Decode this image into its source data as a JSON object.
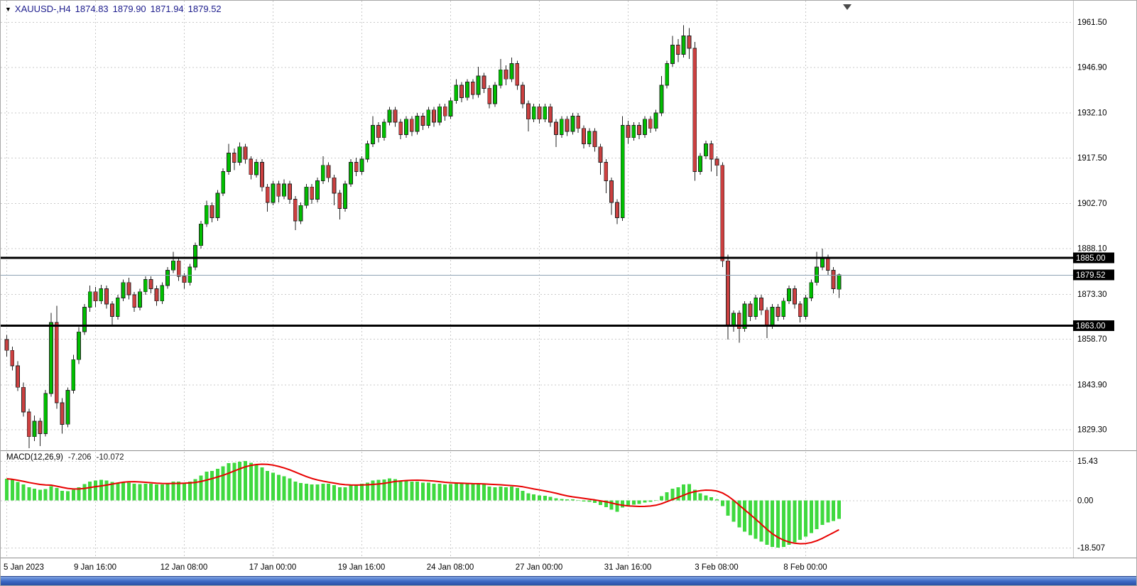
{
  "header": {
    "collapse_icon": "▼",
    "symbol_period": "XAUUSD-,H4",
    "open": "1874.83",
    "high": "1879.90",
    "low": "1871.94",
    "close": "1879.52"
  },
  "macd_label": {
    "title": "MACD(12,26,9)",
    "main_value": "-7.206",
    "signal_value": "-10.072"
  },
  "colors": {
    "background": "#ffffff",
    "grid": "#c9c9c9",
    "up": "#00be00",
    "down": "#cc4040",
    "wick": "#222222",
    "macd_hist": "#3fd93f",
    "macd_signal": "#e80000",
    "hline": "#000000",
    "bid_line": "#8fa3b5",
    "axis_text": "#000000",
    "tag_bg": "#000000",
    "tag_text": "#ffffff",
    "header_text": "#1c1c8c"
  },
  "chart_data": {
    "type": "candlestick",
    "symbol": "XAUUSD-",
    "timeframe": "H4",
    "title": "XAUUSD-,H4",
    "grid": "dashed",
    "bars_per_gridline": 16,
    "ylim": [
      1822.8,
      1968.4
    ],
    "price_axis": [
      {
        "label": "1961.50",
        "value": 1961.5
      },
      {
        "label": "1946.90",
        "value": 1946.9
      },
      {
        "label": "1932.10",
        "value": 1932.1
      },
      {
        "label": "1917.50",
        "value": 1917.5
      },
      {
        "label": "1902.70",
        "value": 1902.7
      },
      {
        "label": "1888.10",
        "value": 1888.1
      },
      {
        "label": "1873.30",
        "value": 1873.3
      },
      {
        "label": "1858.70",
        "value": 1858.7
      },
      {
        "label": "1843.90",
        "value": 1843.9
      },
      {
        "label": "1829.30",
        "value": 1829.3
      }
    ],
    "time_labels": [
      {
        "label": "5 Jan 2023",
        "bar": 0
      },
      {
        "label": "9 Jan 16:00",
        "bar": 16
      },
      {
        "label": "12 Jan 08:00",
        "bar": 32
      },
      {
        "label": "17 Jan 00:00",
        "bar": 48
      },
      {
        "label": "19 Jan 16:00",
        "bar": 64
      },
      {
        "label": "24 Jan 08:00",
        "bar": 80
      },
      {
        "label": "27 Jan 00:00",
        "bar": 96
      },
      {
        "label": "31 Jan 16:00",
        "bar": 112
      },
      {
        "label": "3 Feb 08:00",
        "bar": 128
      },
      {
        "label": "8 Feb 00:00",
        "bar": 144
      }
    ],
    "horizontal_lines": [
      {
        "label": "1885.00",
        "value": 1885.0
      },
      {
        "label": "1863.00",
        "value": 1863.0
      }
    ],
    "current_price": {
      "label": "1879.52",
      "value": 1879.52
    },
    "candles": [
      [
        1858.5,
        1860,
        1853,
        1855
      ],
      [
        1855,
        1856.2,
        1848.5,
        1850
      ],
      [
        1850,
        1851.5,
        1841.8,
        1843
      ],
      [
        1843,
        1844.6,
        1833.5,
        1835
      ],
      [
        1835,
        1836,
        1823.2,
        1827
      ],
      [
        1827,
        1833.8,
        1825.5,
        1832
      ],
      [
        1832,
        1833,
        1824,
        1828
      ],
      [
        1828,
        1842.2,
        1827,
        1841
      ],
      [
        1841,
        1867.2,
        1840,
        1864
      ],
      [
        1864,
        1869.5,
        1836,
        1838
      ],
      [
        1838,
        1839.5,
        1828,
        1831
      ],
      [
        1831,
        1843,
        1830,
        1842
      ],
      [
        1842,
        1853.5,
        1841,
        1852
      ],
      [
        1852,
        1862.5,
        1850.5,
        1861
      ],
      [
        1861,
        1870,
        1860,
        1869
      ],
      [
        1869,
        1876,
        1867.5,
        1874
      ],
      [
        1874,
        1875.5,
        1869,
        1871
      ],
      [
        1871,
        1876.2,
        1870,
        1875
      ],
      [
        1875,
        1876,
        1868.5,
        1870
      ],
      [
        1870,
        1871,
        1863,
        1866
      ],
      [
        1866,
        1873,
        1865,
        1872
      ],
      [
        1872,
        1878,
        1871,
        1877
      ],
      [
        1877,
        1878.5,
        1871.5,
        1873
      ],
      [
        1873,
        1874,
        1867.5,
        1869
      ],
      [
        1869,
        1875,
        1868,
        1874
      ],
      [
        1874,
        1879,
        1873,
        1878
      ],
      [
        1878,
        1879,
        1873.5,
        1875
      ],
      [
        1875,
        1876,
        1869.5,
        1871
      ],
      [
        1871,
        1877,
        1870,
        1876
      ],
      [
        1876,
        1882,
        1875,
        1881
      ],
      [
        1881,
        1887,
        1880,
        1884
      ],
      [
        1884,
        1885,
        1877.5,
        1879
      ],
      [
        1879,
        1880,
        1875,
        1877
      ],
      [
        1877,
        1883,
        1876,
        1882
      ],
      [
        1882,
        1890,
        1881,
        1889
      ],
      [
        1889,
        1897,
        1888,
        1896
      ],
      [
        1896,
        1903.5,
        1895,
        1902
      ],
      [
        1902,
        1903,
        1896.5,
        1898
      ],
      [
        1898,
        1907,
        1897,
        1906
      ],
      [
        1906,
        1914,
        1905,
        1913
      ],
      [
        1913,
        1922,
        1912,
        1919
      ],
      [
        1919,
        1920.5,
        1913.5,
        1916
      ],
      [
        1916,
        1922.5,
        1915,
        1921
      ],
      [
        1921,
        1922,
        1915.5,
        1917
      ],
      [
        1917,
        1918,
        1910.5,
        1912
      ],
      [
        1912,
        1917,
        1911,
        1916
      ],
      [
        1916,
        1917,
        1906.5,
        1908
      ],
      [
        1908,
        1909,
        1900,
        1903
      ],
      [
        1903,
        1910,
        1902,
        1909
      ],
      [
        1909,
        1910,
        1903,
        1905
      ],
      [
        1905,
        1910.5,
        1904,
        1909
      ],
      [
        1909,
        1910,
        1902.5,
        1904
      ],
      [
        1904,
        1905,
        1894,
        1897
      ],
      [
        1897,
        1903,
        1896,
        1902
      ],
      [
        1902,
        1909,
        1901,
        1908
      ],
      [
        1908,
        1909,
        1902.5,
        1904
      ],
      [
        1904,
        1911,
        1903,
        1910
      ],
      [
        1910,
        1918,
        1909,
        1915
      ],
      [
        1915,
        1916,
        1909.5,
        1911
      ],
      [
        1911,
        1912,
        1902,
        1906
      ],
      [
        1906,
        1907,
        1897.5,
        1901
      ],
      [
        1901,
        1910,
        1900,
        1909
      ],
      [
        1909,
        1917,
        1908,
        1916
      ],
      [
        1916,
        1917.5,
        1911.5,
        1913
      ],
      [
        1913,
        1918,
        1912,
        1917
      ],
      [
        1917,
        1923,
        1916,
        1922
      ],
      [
        1922,
        1931,
        1921,
        1928
      ],
      [
        1928,
        1929,
        1922.5,
        1924
      ],
      [
        1924,
        1930,
        1923,
        1929
      ],
      [
        1929,
        1934,
        1928,
        1933
      ],
      [
        1933,
        1934,
        1927.5,
        1929
      ],
      [
        1929,
        1930,
        1923.5,
        1925
      ],
      [
        1925,
        1931,
        1924,
        1930
      ],
      [
        1930,
        1931,
        1924.5,
        1926
      ],
      [
        1926,
        1932,
        1925,
        1931
      ],
      [
        1931,
        1932,
        1926.5,
        1928
      ],
      [
        1928,
        1934,
        1927,
        1933
      ],
      [
        1933,
        1934,
        1927.5,
        1929
      ],
      [
        1929,
        1935,
        1928,
        1934
      ],
      [
        1934,
        1935,
        1929.5,
        1931
      ],
      [
        1931,
        1937,
        1930,
        1936
      ],
      [
        1936,
        1943,
        1935,
        1941
      ],
      [
        1941,
        1942,
        1935.5,
        1937
      ],
      [
        1937,
        1943,
        1936,
        1942
      ],
      [
        1942,
        1943,
        1936.5,
        1938
      ],
      [
        1938,
        1947,
        1937,
        1944
      ],
      [
        1944,
        1945,
        1938.5,
        1940
      ],
      [
        1940,
        1941,
        1933.5,
        1935
      ],
      [
        1935,
        1942,
        1934,
        1941
      ],
      [
        1941,
        1949.5,
        1940,
        1946
      ],
      [
        1946,
        1947.5,
        1941,
        1943
      ],
      [
        1943,
        1950,
        1942,
        1948
      ],
      [
        1948,
        1949,
        1939.5,
        1941
      ],
      [
        1941,
        1942,
        1933.5,
        1935
      ],
      [
        1935,
        1936,
        1926,
        1930
      ],
      [
        1930,
        1935,
        1929,
        1934
      ],
      [
        1934,
        1935,
        1928.5,
        1930
      ],
      [
        1930,
        1935,
        1929,
        1934
      ],
      [
        1934,
        1935,
        1927.5,
        1929
      ],
      [
        1929,
        1930,
        1921,
        1925
      ],
      [
        1925,
        1931,
        1924,
        1930
      ],
      [
        1930,
        1931,
        1924.5,
        1926
      ],
      [
        1926,
        1932,
        1925,
        1931
      ],
      [
        1931,
        1932,
        1925.5,
        1927
      ],
      [
        1927,
        1928,
        1920.5,
        1922
      ],
      [
        1922,
        1927,
        1921,
        1926
      ],
      [
        1926,
        1927,
        1919.5,
        1921
      ],
      [
        1921,
        1922,
        1912,
        1916
      ],
      [
        1916,
        1917,
        1906,
        1910
      ],
      [
        1910,
        1911,
        1899,
        1903
      ],
      [
        1903,
        1904,
        1896,
        1898
      ],
      [
        1898,
        1931,
        1897,
        1928
      ],
      [
        1928,
        1929.5,
        1922,
        1924
      ],
      [
        1924,
        1929,
        1923,
        1928
      ],
      [
        1928,
        1929,
        1923.5,
        1925
      ],
      [
        1925,
        1931,
        1924,
        1930
      ],
      [
        1930,
        1931,
        1925.5,
        1927
      ],
      [
        1927,
        1933,
        1926,
        1932
      ],
      [
        1932,
        1944,
        1931,
        1941
      ],
      [
        1941,
        1949,
        1940,
        1948
      ],
      [
        1948,
        1957,
        1947,
        1954
      ],
      [
        1954,
        1956,
        1948.5,
        1951
      ],
      [
        1951,
        1960.5,
        1950,
        1957
      ],
      [
        1957,
        1959.5,
        1949.5,
        1953
      ],
      [
        1953,
        1955,
        1910,
        1913
      ],
      [
        1913,
        1919,
        1912,
        1918
      ],
      [
        1918,
        1923,
        1917,
        1922
      ],
      [
        1922,
        1923,
        1913,
        1917
      ],
      [
        1917,
        1918,
        1911.5,
        1915
      ],
      [
        1915,
        1916,
        1882,
        1884
      ],
      [
        1884,
        1886,
        1858.5,
        1863
      ],
      [
        1863,
        1868,
        1861,
        1867
      ],
      [
        1867,
        1868,
        1857.5,
        1862
      ],
      [
        1862,
        1871,
        1861,
        1870
      ],
      [
        1870,
        1871,
        1864.5,
        1866
      ],
      [
        1866,
        1873,
        1865,
        1872
      ],
      [
        1872,
        1873,
        1866.5,
        1868
      ],
      [
        1868,
        1869,
        1859,
        1863
      ],
      [
        1863,
        1870,
        1862,
        1869
      ],
      [
        1869,
        1870,
        1864.5,
        1866
      ],
      [
        1866,
        1872,
        1865,
        1871
      ],
      [
        1871,
        1876,
        1870,
        1875
      ],
      [
        1875,
        1876,
        1868.5,
        1870
      ],
      [
        1870,
        1871,
        1864,
        1866
      ],
      [
        1866,
        1873,
        1865,
        1872
      ],
      [
        1872,
        1878,
        1871,
        1877
      ],
      [
        1877,
        1887,
        1876,
        1882
      ],
      [
        1882,
        1888,
        1881,
        1885
      ],
      [
        1885,
        1886,
        1879.5,
        1881
      ],
      [
        1881,
        1882,
        1873.5,
        1875
      ],
      [
        1874.83,
        1879.9,
        1871.94,
        1879.52
      ]
    ],
    "indicator": {
      "name": "MACD(12,26,9)",
      "type": "macd",
      "signal_period": 9,
      "main_last": -7.206,
      "signal_last": -10.072,
      "axis_labels": [
        {
          "label": "15.43",
          "value": 15.43
        },
        {
          "label": "0.00",
          "value": 0
        },
        {
          "label": "-18.507",
          "value": -18.507
        }
      ],
      "histogram": [
        8.5,
        8,
        7.2,
        6.2,
        5.2,
        4.6,
        4.2,
        4.5,
        5.5,
        4.8,
        3.8,
        3.6,
        4.2,
        5.2,
        6.4,
        7.4,
        7.8,
        8,
        7.8,
        7.2,
        7,
        7.2,
        7,
        6.6,
        6.4,
        6.6,
        6.5,
        6.2,
        6.3,
        6.8,
        7.4,
        7.4,
        7,
        7.4,
        8.4,
        9.8,
        11.2,
        11.6,
        12.4,
        13.4,
        14.6,
        14.8,
        15.2,
        15.43,
        14.8,
        14.2,
        13,
        11.6,
        10.8,
        10,
        9.4,
        8.6,
        7.4,
        6.8,
        6.6,
        6.2,
        6.2,
        6.6,
        6.6,
        6,
        5.2,
        5.2,
        5.8,
        6.2,
        6.6,
        7,
        7.8,
        8,
        8.2,
        8.6,
        8.4,
        7.8,
        7.8,
        7.4,
        7.4,
        7,
        7,
        6.6,
        6.6,
        6.2,
        6.4,
        6.8,
        6.6,
        6.6,
        6.4,
        6.6,
        6.2,
        5.4,
        5.2,
        5.4,
        5.2,
        5.4,
        4.8,
        3.8,
        2.8,
        2.4,
        2,
        1.8,
        1.4,
        0.8,
        0.6,
        0.4,
        0.4,
        0.2,
        -0.4,
        -0.6,
        -1,
        -1.8,
        -2.6,
        -3.6,
        -4.4,
        -2.8,
        -2,
        -1.6,
        -1.4,
        -0.8,
        -0.6,
        0.2,
        1.6,
        3.2,
        4.6,
        5.2,
        6.2,
        6.4,
        4.2,
        2.8,
        2,
        1.2,
        0.4,
        -2.2,
        -6,
        -8.4,
        -10.6,
        -12.2,
        -13.6,
        -15,
        -16.2,
        -17.4,
        -18.2,
        -18.507,
        -18.2,
        -17.4,
        -16.4,
        -15.4,
        -14.2,
        -12.8,
        -11.2,
        -9.6,
        -8.6,
        -8,
        -7.206
      ]
    }
  }
}
